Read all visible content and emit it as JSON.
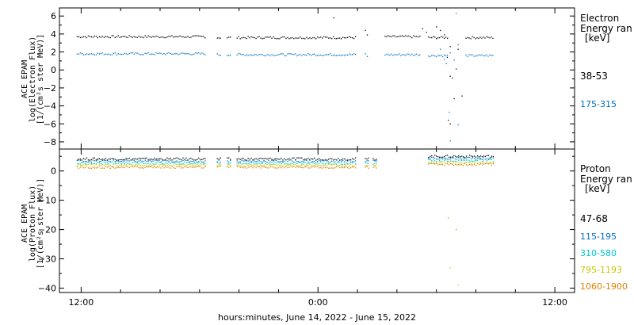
{
  "xlabel": "hours:minutes, June 14, 2022 - June 15, 2022",
  "x_ticks": [
    "12:00",
    "0:00",
    "12:00"
  ],
  "chart_data": [
    {
      "type": "scatter",
      "ylabel": [
        "ACE EPAM",
        "log(Electron Flux)",
        "[1/(cm²s ster MeV)]"
      ],
      "ylim": [
        -8.8,
        6.9
      ],
      "xlim_hours": [
        10.9,
        37.0
      ],
      "y_ticks": [
        6,
        4,
        2,
        0,
        -2,
        -4,
        -6,
        -8
      ],
      "y_tick_labels": [
        "6",
        "4",
        "2",
        "0",
        "−2",
        "−4",
        "−6",
        "−8"
      ],
      "legend_title": [
        "Electron",
        "Energy ran",
        "[keV]"
      ],
      "series": [
        {
          "name": "38-53",
          "color": "#000000",
          "segments": [
            [
              11.8,
              18.3,
              3.7
            ],
            [
              18.9,
              19.1,
              3.6
            ],
            [
              19.4,
              19.6,
              3.6
            ],
            [
              19.9,
              25.9,
              3.6
            ],
            [
              27.4,
              29.2,
              3.7
            ],
            [
              29.6,
              30.6,
              3.6
            ],
            [
              31.5,
              32.9,
              3.6
            ]
          ],
          "points": [
            [
              24.8,
              5.8
            ],
            [
              26.4,
              4.4
            ],
            [
              26.5,
              3.9
            ],
            [
              29.3,
              4.6
            ],
            [
              29.5,
              4.2
            ],
            [
              30.0,
              4.8
            ],
            [
              30.2,
              4.4
            ],
            [
              30.4,
              3.9
            ],
            [
              30.55,
              1.4
            ],
            [
              30.7,
              2.6
            ],
            [
              31.0,
              0.1
            ],
            [
              30.7,
              -0.7
            ],
            [
              30.8,
              -0.9
            ],
            [
              30.9,
              -3.2
            ],
            [
              30.6,
              -5.6
            ],
            [
              30.7,
              -6.0
            ],
            [
              31.1,
              2.3
            ],
            [
              31.3,
              -2.9
            ]
          ]
        },
        {
          "name": "175-315",
          "color": "#0070c0",
          "segments": [
            [
              11.8,
              18.3,
              1.8
            ],
            [
              18.9,
              19.1,
              1.7
            ],
            [
              19.4,
              19.6,
              1.7
            ],
            [
              19.9,
              25.9,
              1.7
            ],
            [
              27.4,
              29.2,
              1.7
            ],
            [
              29.6,
              30.6,
              1.6
            ],
            [
              31.5,
              32.9,
              1.6
            ]
          ],
          "points": [
            [
              26.4,
              1.8
            ],
            [
              26.5,
              1.5
            ],
            [
              30.2,
              2.3
            ],
            [
              30.4,
              1.2
            ],
            [
              30.5,
              0.7
            ],
            [
              30.9,
              1.1
            ],
            [
              30.7,
              1.9
            ],
            [
              31.0,
              6.3
            ],
            [
              31.1,
              2.8
            ],
            [
              30.65,
              -4.7
            ],
            [
              30.7,
              -7.9
            ],
            [
              31.1,
              -6.1
            ]
          ]
        }
      ]
    },
    {
      "type": "scatter",
      "ylabel": [
        "ACE EPAM",
        "log(Proton Flux)",
        "[1/(cm²s ster MeV)]"
      ],
      "ylim": [
        -41.5,
        7.5
      ],
      "xlim_hours": [
        10.9,
        37.0
      ],
      "y_ticks": [
        0,
        -10,
        -20,
        -30,
        -40
      ],
      "y_tick_labels": [
        "0",
        "−10",
        "−20",
        "−30",
        "−40"
      ],
      "legend_title": [
        "Proton",
        "Energy ran",
        "[keV]"
      ],
      "series": [
        {
          "name": "47-68",
          "color": "#000000",
          "level": 4.1,
          "peak": 5.0
        },
        {
          "name": "115-195",
          "color": "#0070c0",
          "level": 3.4,
          "peak": 4.3
        },
        {
          "name": "310-580",
          "color": "#00c8c8",
          "level": 2.7,
          "peak": 3.6
        },
        {
          "name": "795-1193",
          "color": "#c8c800",
          "level": 2.0,
          "peak": 2.9
        },
        {
          "name": "1060-1900",
          "color": "#e08000",
          "level": 1.3,
          "peak": 2.2
        }
      ],
      "segments": [
        [
          11.8,
          18.3
        ],
        [
          18.9,
          19.1
        ],
        [
          19.4,
          19.6
        ],
        [
          19.9,
          25.9
        ],
        [
          26.4,
          26.6
        ],
        [
          26.8,
          27.0
        ],
        [
          29.6,
          32.9
        ]
      ],
      "outliers": [
        [
          30.6,
          -16.0,
          "#e08000"
        ],
        [
          30.7,
          -33.0,
          "#c8c800"
        ],
        [
          31.0,
          -20.0,
          "#e08000"
        ],
        [
          31.1,
          -39.0,
          "#c8c800"
        ]
      ]
    }
  ]
}
